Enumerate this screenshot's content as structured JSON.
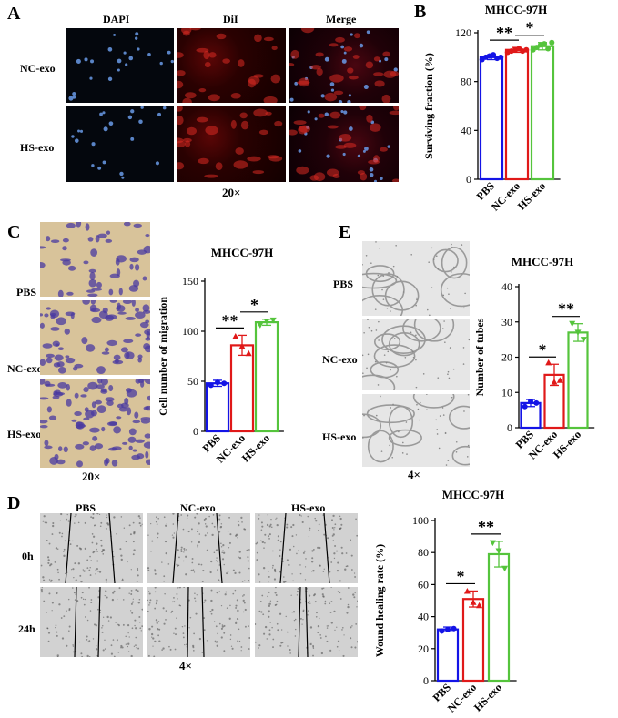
{
  "panels": {
    "A": {
      "letter": "A",
      "columns": [
        "DAPI",
        "DiI",
        "Merge"
      ],
      "rows": [
        "NC-exo",
        "HS-exo"
      ],
      "magnification": "20×"
    },
    "C": {
      "letter": "C",
      "rows": [
        "PBS",
        "NC-exo",
        "HS-exo"
      ],
      "magnification": "20×"
    },
    "D": {
      "letter": "D",
      "columns": [
        "PBS",
        "NC-exo",
        "HS-exo"
      ],
      "rows": [
        "0h",
        "24h"
      ],
      "magnification": "4×"
    },
    "E": {
      "letter": "E",
      "rows": [
        "PBS",
        "NC-exo",
        "HS-exo"
      ],
      "magnification": "4×"
    },
    "B": {
      "letter": "B"
    }
  },
  "colors": {
    "PBS": "#1414e6",
    "NC-exo": "#e01919",
    "HS-exo": "#55c43c"
  },
  "chart_data": [
    {
      "id": "B",
      "type": "bar",
      "title": "MHCC-97H",
      "ylabel": "Surviving fraction (%)",
      "categories": [
        "PBS",
        "NC-exo",
        "HS-exo"
      ],
      "values": [
        100,
        106,
        109
      ],
      "errors": [
        2,
        2,
        3
      ],
      "points": [
        [
          98,
          100,
          101,
          102,
          99,
          100
        ],
        [
          104,
          105,
          106,
          107,
          105,
          106
        ],
        [
          106,
          108,
          110,
          111,
          107,
          112
        ]
      ],
      "ylim": [
        0,
        120
      ],
      "yticks": [
        0,
        40,
        80,
        120
      ],
      "significance": [
        {
          "pair": [
            0,
            1
          ],
          "label": "**"
        },
        {
          "pair": [
            1,
            2
          ],
          "label": "*"
        }
      ],
      "marker": "circle"
    },
    {
      "id": "C",
      "type": "bar",
      "title": "MHCC-97H",
      "ylabel": "Cell number of migration",
      "categories": [
        "PBS",
        "NC-exo",
        "HS-exo"
      ],
      "values": [
        48,
        86,
        109
      ],
      "errors": [
        3,
        10,
        3
      ],
      "points": [
        [
          46,
          49,
          48
        ],
        [
          95,
          85,
          78
        ],
        [
          106,
          110,
          111
        ]
      ],
      "ylim": [
        0,
        150
      ],
      "yticks": [
        0,
        50,
        100,
        150
      ],
      "significance": [
        {
          "pair": [
            0,
            1
          ],
          "label": "**"
        },
        {
          "pair": [
            1,
            2
          ],
          "label": "*"
        }
      ],
      "marker": "mixed"
    },
    {
      "id": "E",
      "type": "bar",
      "title": "MHCC-97H",
      "ylabel": "Number of tubes",
      "categories": [
        "PBS",
        "NC-exo",
        "HS-exo"
      ],
      "values": [
        7,
        15,
        27
      ],
      "errors": [
        1,
        3,
        2.5
      ],
      "points": [
        [
          6,
          7.5,
          7
        ],
        [
          18.5,
          13,
          13.5
        ],
        [
          29.5,
          27,
          25
        ]
      ],
      "ylim": [
        0,
        40
      ],
      "yticks": [
        0,
        10,
        20,
        30,
        40
      ],
      "significance": [
        {
          "pair": [
            0,
            1
          ],
          "label": "*"
        },
        {
          "pair": [
            1,
            2
          ],
          "label": "**"
        }
      ],
      "marker": "mixed"
    },
    {
      "id": "D",
      "type": "bar",
      "title": "MHCC-97H",
      "ylabel": "Wound healing rate (%)",
      "categories": [
        "PBS",
        "NC-exo",
        "HS-exo"
      ],
      "values": [
        32,
        51,
        79
      ],
      "errors": [
        1.5,
        5,
        8
      ],
      "points": [
        [
          31,
          32,
          32.5
        ],
        [
          56,
          49,
          47
        ],
        [
          86,
          81,
          70
        ]
      ],
      "ylim": [
        0,
        100
      ],
      "yticks": [
        0,
        20,
        40,
        60,
        80,
        100
      ],
      "significance": [
        {
          "pair": [
            0,
            1
          ],
          "label": "*"
        },
        {
          "pair": [
            1,
            2
          ],
          "label": "**"
        }
      ],
      "marker": "mixed"
    }
  ]
}
